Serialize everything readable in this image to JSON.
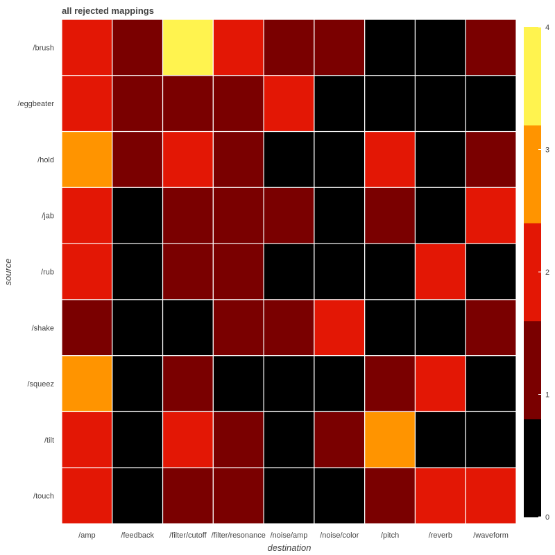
{
  "chart_data": {
    "type": "heatmap",
    "title": "all rejected mappings",
    "xlabel": "destination",
    "ylabel": "source",
    "x": [
      "/amp",
      "/feedback",
      "/filter/cutoff",
      "/filter/resonance",
      "/noise/amp",
      "/noise/color",
      "/pitch",
      "/reverb",
      "/waveform"
    ],
    "y": [
      "/brush",
      "/eggbeater",
      "/hold",
      "/jab",
      "/rub",
      "/shake",
      "/squeez",
      "/tilt",
      "/touch"
    ],
    "z": [
      [
        2,
        1,
        4,
        2,
        1,
        1,
        0,
        0,
        1
      ],
      [
        2,
        1,
        1,
        1,
        2,
        0,
        0,
        0,
        0
      ],
      [
        3,
        1,
        2,
        1,
        0,
        0,
        2,
        0,
        1
      ],
      [
        2,
        0,
        1,
        1,
        1,
        0,
        1,
        0,
        2
      ],
      [
        2,
        0,
        1,
        1,
        0,
        0,
        0,
        2,
        0
      ],
      [
        1,
        0,
        0,
        1,
        1,
        2,
        0,
        0,
        1
      ],
      [
        3,
        0,
        1,
        0,
        0,
        0,
        1,
        2,
        0
      ],
      [
        2,
        0,
        2,
        1,
        0,
        1,
        3,
        0,
        0
      ],
      [
        2,
        0,
        1,
        1,
        0,
        0,
        1,
        2,
        2
      ]
    ],
    "zrange": [
      0,
      4
    ],
    "colorscale": [
      {
        "value": 0,
        "color": "#000000"
      },
      {
        "value": 1,
        "color": "#7a0000"
      },
      {
        "value": 2,
        "color": "#e31705"
      },
      {
        "value": 3,
        "color": "#ff9400"
      },
      {
        "value": 4,
        "color": "#fff34f"
      }
    ],
    "colorbar": {
      "ticks": [
        0,
        1,
        2,
        3,
        4
      ],
      "tick_labels": [
        "0",
        "1",
        "2",
        "3",
        "4"
      ]
    },
    "cell_border_color": "#ffffff"
  }
}
